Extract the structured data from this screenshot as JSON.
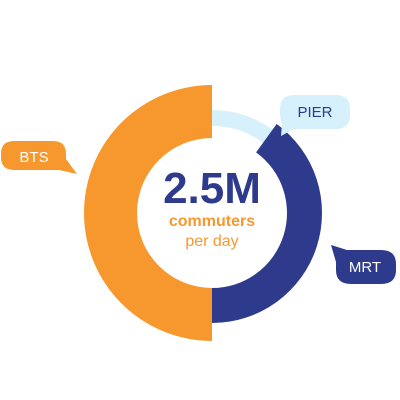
{
  "chart_data": {
    "type": "pie",
    "title": "",
    "center": {
      "value": "2.5M",
      "label_line1": "commuters",
      "label_line2": "per day"
    },
    "series": [
      {
        "name": "BTS",
        "value": 50,
        "color": "#F7982F"
      },
      {
        "name": "MRT",
        "value": 40,
        "color": "#2E3A8C"
      },
      {
        "name": "PIER",
        "value": 10,
        "color": "#D6F1FC"
      }
    ],
    "colors": {
      "value_text": "#2E3A8C",
      "label_text": "#F7982F",
      "pier_text": "#2E3A8C",
      "bts_text": "#FFFFFF",
      "mrt_text": "#FFFFFF"
    }
  }
}
